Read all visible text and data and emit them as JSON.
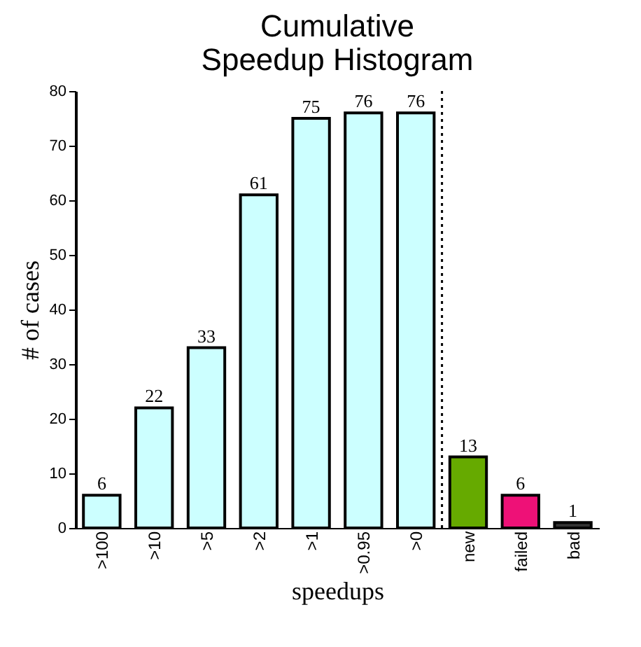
{
  "chart_data": {
    "type": "bar",
    "title": [
      "Cumulative",
      "Speedup Histogram"
    ],
    "categories": [
      ">100",
      ">10",
      ">5",
      ">2",
      ">1",
      ">0.95",
      ">0",
      "new",
      "failed",
      "bad"
    ],
    "values": [
      6,
      22,
      33,
      61,
      75,
      76,
      76,
      13,
      6,
      1
    ],
    "colors": [
      "#ccffff",
      "#ccffff",
      "#ccffff",
      "#ccffff",
      "#ccffff",
      "#ccffff",
      "#ccffff",
      "#66aa00",
      "#ee1177",
      "#333333"
    ],
    "xlabel": "speedups",
    "ylabel": "# of cases",
    "ylim": [
      0,
      80
    ],
    "yticks": [
      0,
      10,
      20,
      30,
      40,
      50,
      60,
      70,
      80
    ],
    "data_labels": true,
    "grid": false
  }
}
